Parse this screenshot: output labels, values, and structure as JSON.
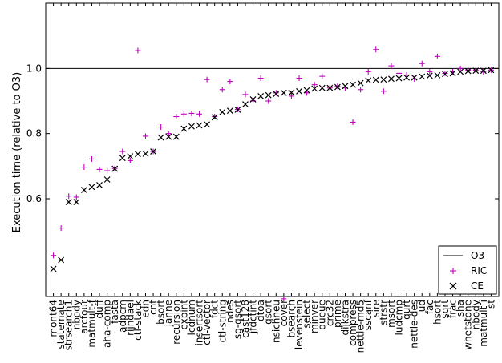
{
  "chart_data": {
    "type": "scatter",
    "title": "",
    "xlabel": "",
    "ylabel": "Execution time (relative to O3)",
    "ylim": [
      0.3,
      1.2
    ],
    "yticks": [
      0.6,
      0.8,
      1.0
    ],
    "ytick_labels": [
      "0.6",
      "0.8",
      "1.0"
    ],
    "reference_line": {
      "name": "O3",
      "y": 1.0
    },
    "legend_position": "bottom-right",
    "categories": [
      "mont64",
      "statemate",
      "strsearch1",
      "nbody",
      "arcfour",
      "matmult-f",
      "duff",
      "aha-comp",
      "fasta",
      "adpcm",
      "rijndael",
      "ctl-stack",
      "edn",
      "cnt",
      "bsort",
      "janne",
      "recursion",
      "expint",
      "lcdnum",
      "insertsort",
      "ctl-vector",
      "fdct",
      "ctl-string",
      "ndes",
      "sg-qsort",
      "cast128",
      "jfdctint",
      "dtoa",
      "qsort",
      "nsichneu",
      "cover",
      "bsearch",
      "levenstein",
      "select",
      "minver",
      "queue",
      "crc32",
      "prime",
      "dijkstra",
      "compress",
      "nettle-md5",
      "sscanf",
      "sire",
      "strstr",
      "msort",
      "ludcmp",
      "qurt",
      "nettle-des",
      "ud",
      "fac",
      "hsort",
      "sqrt",
      "frac",
      "sha",
      "whetstone",
      "nbody",
      "matmult-i",
      "st"
    ],
    "series": [
      {
        "name": "RIC",
        "marker": "+",
        "color": "#bf00bf",
        "values": [
          0.426,
          0.51,
          0.608,
          0.605,
          0.697,
          0.722,
          0.69,
          0.686,
          0.693,
          0.745,
          0.717,
          1.055,
          0.792,
          0.745,
          0.82,
          0.8,
          0.852,
          0.86,
          0.862,
          0.86,
          0.966,
          0.852,
          0.935,
          0.96,
          0.874,
          0.92,
          0.9,
          0.97,
          0.9,
          0.925,
          0.293,
          0.915,
          0.97,
          0.925,
          0.95,
          0.976,
          0.94,
          0.945,
          0.94,
          0.835,
          0.935,
          0.99,
          1.058,
          0.93,
          1.008,
          0.985,
          0.98,
          0.968,
          1.015,
          0.99,
          1.037,
          0.985,
          0.99,
          1.0,
          0.995,
          0.995,
          0.99,
          0.995
        ]
      },
      {
        "name": "CE",
        "marker": "x",
        "color": "#000000",
        "values": [
          0.385,
          0.412,
          0.59,
          0.59,
          0.627,
          0.636,
          0.642,
          0.659,
          0.692,
          0.725,
          0.73,
          0.737,
          0.738,
          0.745,
          0.788,
          0.79,
          0.79,
          0.815,
          0.822,
          0.825,
          0.828,
          0.85,
          0.866,
          0.87,
          0.873,
          0.89,
          0.905,
          0.915,
          0.918,
          0.922,
          0.925,
          0.926,
          0.93,
          0.933,
          0.938,
          0.94,
          0.94,
          0.943,
          0.946,
          0.95,
          0.955,
          0.963,
          0.965,
          0.966,
          0.968,
          0.97,
          0.972,
          0.972,
          0.975,
          0.978,
          0.979,
          0.983,
          0.985,
          0.99,
          0.992,
          0.993,
          0.993,
          0.995
        ]
      }
    ]
  }
}
